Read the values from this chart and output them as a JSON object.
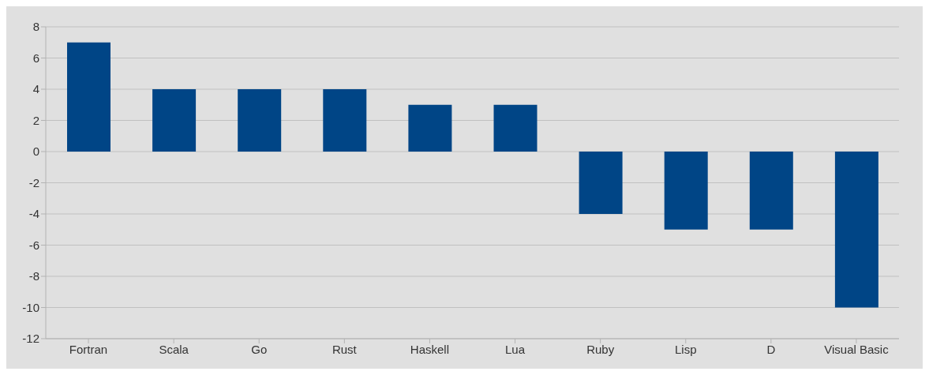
{
  "chart_data": {
    "type": "bar",
    "categories": [
      "Fortran",
      "Scala",
      "Go",
      "Rust",
      "Haskell",
      "Lua",
      "Ruby",
      "Lisp",
      "D",
      "Visual Basic"
    ],
    "values": [
      7,
      4,
      4,
      4,
      3,
      3,
      -4,
      -5,
      -5,
      -10
    ],
    "color": "#004586",
    "ylim": [
      -12,
      8
    ],
    "yticks": [
      -12,
      -10,
      -8,
      -6,
      -4,
      -2,
      0,
      2,
      4,
      6,
      8
    ],
    "grid": "y"
  }
}
